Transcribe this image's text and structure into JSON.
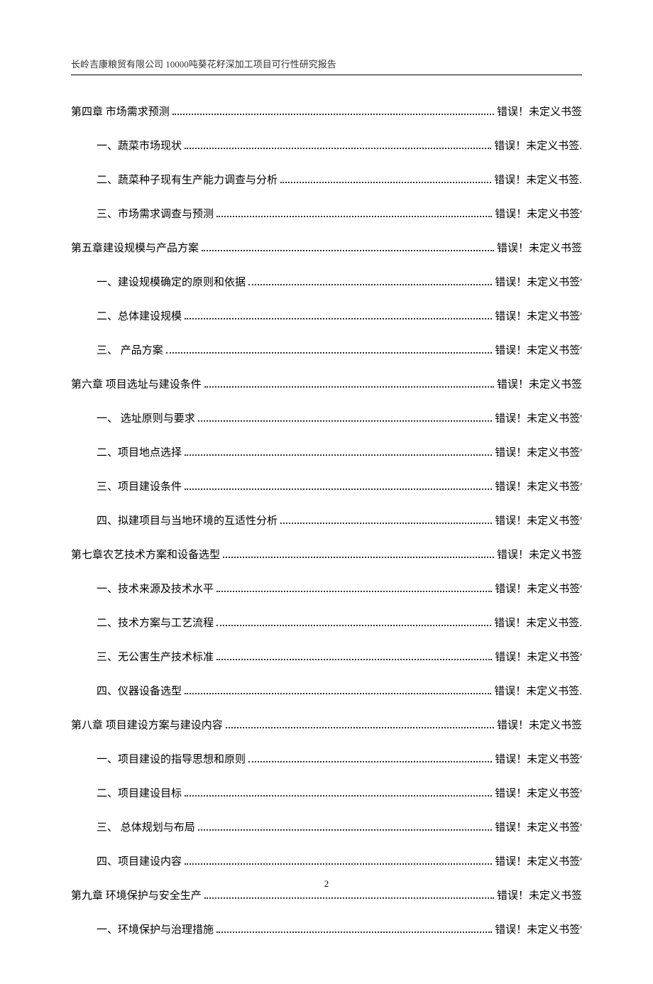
{
  "header": "长岭吉康粮贸有限公司 10000吨葵花籽深加工项目可行性研究报告",
  "page_number": "2",
  "entries": [
    {
      "level": 0,
      "title": "第四章 市场需求预测 ",
      "ref": " 错误！未定义书签"
    },
    {
      "level": 1,
      "title": "一、蔬菜市场现状",
      "ref": " 错误！未定义书签."
    },
    {
      "level": 1,
      "title": "二、蔬菜种子现有生产能力调查与分析",
      "ref": " 错误！未定义书签."
    },
    {
      "level": 1,
      "title": "三、市场需求调查与预测 ",
      "ref": " 错误！未定义书签'"
    },
    {
      "level": 0,
      "title": "第五章建设规模与产品方案",
      "ref": " 错误！未定义书签"
    },
    {
      "level": 1,
      "title": "一、建设规模确定的原则和依据",
      "ref": " 错误！未定义书签'"
    },
    {
      "level": 1,
      "title": "二、总体建设规模 ",
      "ref": " 错误！未定义书签'"
    },
    {
      "level": 1,
      "title": "三、 产品方案  ",
      "ref": " 错误！未定义书签'"
    },
    {
      "level": 0,
      "title": "第六章 项目选址与建设条件 ",
      "ref": " 错误！未定义书签"
    },
    {
      "level": 1,
      "title": "一、 选址原则与要求 ",
      "ref": " 错误！未定义书签'"
    },
    {
      "level": 1,
      "title": "二、项目地点选择 ",
      "ref": " 错误！未定义书签'"
    },
    {
      "level": 1,
      "title": "三、项目建设条件 ",
      "ref": " 错误！未定义书签'"
    },
    {
      "level": 1,
      "title": "四、拟建项目与当地环境的互适性分析  ",
      "ref": " 错误！未定义书签'"
    },
    {
      "level": 0,
      "title": "第七章农艺技术方案和设备选型",
      "ref": " 错误！未定义书签"
    },
    {
      "level": 1,
      "title": "一、技术来源及技术水平",
      "ref": " 错误！未定义书签'"
    },
    {
      "level": 1,
      "title": "二、技术方案与工艺流程",
      "ref": " 错误！未定义书签."
    },
    {
      "level": 1,
      "title": "三、无公害生产技术标准 ",
      "ref": " 错误！未定义书签'"
    },
    {
      "level": 1,
      "title": "四、仪器设备选型 ",
      "ref": " 错误！未定义书签."
    },
    {
      "level": 0,
      "title": "第八章 项目建设方案与建设内容 ",
      "ref": " 错误！未定义书签"
    },
    {
      "level": 1,
      "title": "一、项目建设的指导思想和原则 ",
      "ref": " 错误！未定义书签'"
    },
    {
      "level": 1,
      "title": "二、项目建设目标 ",
      "ref": " 错误！未定义书签'"
    },
    {
      "level": 1,
      "title": "三、 总体规划与布局 ",
      "ref": " 错误！未定义书签'"
    },
    {
      "level": 1,
      "title": "四、项目建设内容 ",
      "ref": " 错误！未定义书签'"
    },
    {
      "level": 0,
      "title": "第九章 环境保护与安全生产 ",
      "ref": " 错误！未定义书签"
    },
    {
      "level": 1,
      "title": "一、环境保护与治理措施",
      "ref": " 错误！未定义书签'"
    }
  ]
}
